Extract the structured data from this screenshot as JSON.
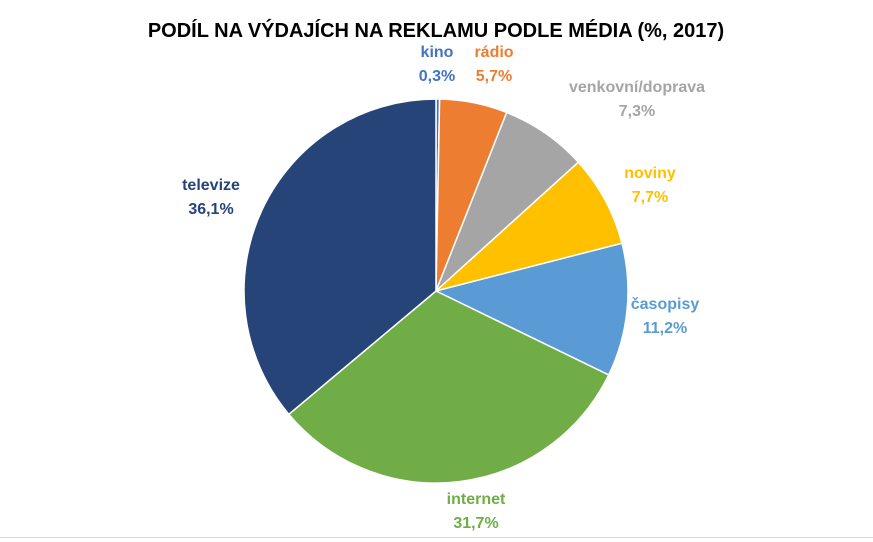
{
  "chart_data": {
    "type": "pie",
    "title": "PODÍL NA VÝDAJÍCH NA REKLAMU PODLE MÉDIA (%, 2017)",
    "slices": [
      {
        "name": "kino",
        "value": 0.3,
        "value_label": "0,3%",
        "color": "#4472c4"
      },
      {
        "name": "rádio",
        "value": 5.7,
        "value_label": "5,7%",
        "color": "#ed7d31"
      },
      {
        "name": "venkovní/doprava",
        "value": 7.3,
        "value_label": "7,3%",
        "color": "#a5a5a5"
      },
      {
        "name": "noviny",
        "value": 7.7,
        "value_label": "7,7%",
        "color": "#ffc000"
      },
      {
        "name": "časopisy",
        "value": 11.2,
        "value_label": "11,2%",
        "color": "#5b9bd5"
      },
      {
        "name": "internet",
        "value": 31.7,
        "value_label": "31,7%",
        "color": "#70ad47"
      },
      {
        "name": "televize",
        "value": 36.1,
        "value_label": "36,1%",
        "color": "#264478"
      }
    ],
    "start": "12 o'clock",
    "direction": "clockwise",
    "legend": "none",
    "data_labels": "outside"
  }
}
